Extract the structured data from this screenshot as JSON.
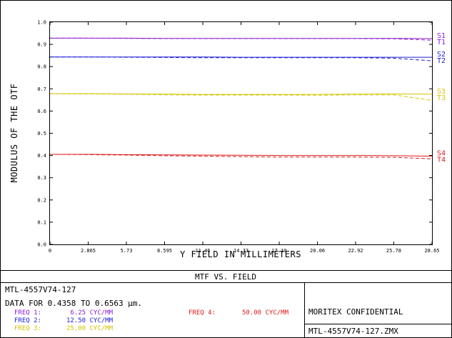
{
  "chart_data": {
    "type": "line",
    "title": "MTF VS. FIELD",
    "xlabel": "Y FIELD IN MILLIMETERS",
    "ylabel": "MODULUS OF THE OTF",
    "xlim": [
      0,
      28.65
    ],
    "ylim": [
      0,
      1.0
    ],
    "x_ticks": [
      "0",
      "2.865",
      "5.73",
      "8.595",
      "11.46",
      "14.33",
      "17.19",
      "20.06",
      "22.92",
      "25.78",
      "28.65"
    ],
    "y_ticks": [
      "0.0",
      "0.1",
      "0.2",
      "0.3",
      "0.4",
      "0.5",
      "0.6",
      "0.7",
      "0.8",
      "0.9",
      "1.0"
    ],
    "x": [
      0,
      2.865,
      5.73,
      8.595,
      11.46,
      14.33,
      17.19,
      20.06,
      22.92,
      25.78,
      28.65
    ],
    "series": [
      {
        "name": "S1",
        "color": "#8a1fd0",
        "dash": false,
        "values": [
          0.928,
          0.928,
          0.928,
          0.927,
          0.927,
          0.927,
          0.927,
          0.927,
          0.927,
          0.927,
          0.926
        ]
      },
      {
        "name": "T1",
        "color": "#8a1fd0",
        "dash": true,
        "values": [
          0.928,
          0.928,
          0.927,
          0.926,
          0.926,
          0.926,
          0.926,
          0.926,
          0.926,
          0.925,
          0.919
        ]
      },
      {
        "name": "S2",
        "color": "#1c1cd8",
        "dash": false,
        "values": [
          0.843,
          0.843,
          0.843,
          0.843,
          0.843,
          0.842,
          0.842,
          0.842,
          0.842,
          0.842,
          0.842
        ]
      },
      {
        "name": "T2",
        "color": "#1c1cd8",
        "dash": true,
        "values": [
          0.843,
          0.843,
          0.842,
          0.841,
          0.84,
          0.84,
          0.84,
          0.84,
          0.84,
          0.838,
          0.826
        ]
      },
      {
        "name": "S3",
        "color": "#d6c400",
        "dash": false,
        "values": [
          0.678,
          0.678,
          0.677,
          0.676,
          0.675,
          0.675,
          0.675,
          0.675,
          0.676,
          0.677,
          0.676
        ]
      },
      {
        "name": "T3",
        "color": "#d6c400",
        "dash": true,
        "values": [
          0.678,
          0.677,
          0.676,
          0.673,
          0.672,
          0.672,
          0.672,
          0.671,
          0.673,
          0.673,
          0.648
        ]
      },
      {
        "name": "S4",
        "color": "#e01818",
        "dash": false,
        "values": [
          0.405,
          0.405,
          0.404,
          0.403,
          0.402,
          0.401,
          0.4,
          0.4,
          0.4,
          0.399,
          0.397
        ]
      },
      {
        "name": "T4",
        "color": "#e01818",
        "dash": true,
        "values": [
          0.405,
          0.404,
          0.402,
          0.399,
          0.397,
          0.395,
          0.393,
          0.393,
          0.393,
          0.392,
          0.385
        ]
      }
    ]
  },
  "footer": {
    "title": "MTF VS. FIELD",
    "design_name": "MTL-4557V74-127",
    "data_line": "DATA FOR 0.4358 TO 0.6563 µm.",
    "freqs": [
      {
        "label": "FREQ 1:",
        "value": "6.25 CYC/MM",
        "color": "#8a1fd0"
      },
      {
        "label": "FREQ 2:",
        "value": "12.50 CYC/MM",
        "color": "#1c1cd8"
      },
      {
        "label": "FREQ 3:",
        "value": "25.00 CYC/MM",
        "color": "#d6c400"
      },
      {
        "label": "FREQ 4:",
        "value": "50.00 CYC/MM",
        "color": "#e01818"
      }
    ],
    "confidential": "MORITEX CONFIDENTIAL",
    "file_name": "MTL-4557V74-127.ZMX"
  }
}
